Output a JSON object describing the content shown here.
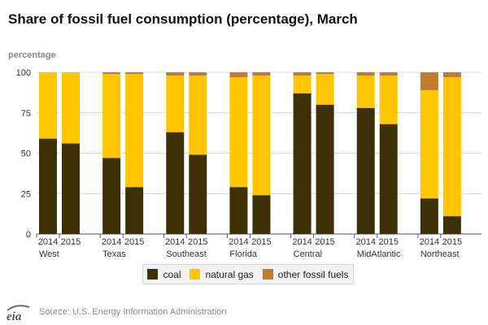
{
  "title": "Share of fossil fuel consumption (percentage), March",
  "logo_text": "eia",
  "source": "Source: U.S. Energy Information Administration",
  "colors": {
    "coal": "#3e3006",
    "natural_gas": "#ffc600",
    "other": "#c07b2e",
    "grid": "#d9d9d9",
    "axis": "#555555"
  },
  "chart_data": {
    "type": "bar",
    "stacked": true,
    "ylabel": "percentage",
    "ylim": [
      0,
      100
    ],
    "yticks": [
      0,
      25,
      50,
      75,
      100
    ],
    "grid": true,
    "legend_position": "bottom",
    "groups": [
      "West",
      "Texas",
      "Southeast",
      "Florida",
      "Central",
      "MidAtlantic",
      "Northeast"
    ],
    "years": [
      "2014",
      "2015"
    ],
    "series": [
      {
        "name": "coal",
        "color": "#3e3006",
        "values": [
          [
            59,
            56
          ],
          [
            47,
            29
          ],
          [
            63,
            49
          ],
          [
            29,
            24
          ],
          [
            87,
            80
          ],
          [
            78,
            68
          ],
          [
            22,
            11
          ]
        ]
      },
      {
        "name": "natural gas",
        "color": "#ffc600",
        "values": [
          [
            41,
            44
          ],
          [
            52,
            70
          ],
          [
            35,
            49
          ],
          [
            68,
            74
          ],
          [
            11,
            19
          ],
          [
            20,
            30
          ],
          [
            67,
            86
          ]
        ]
      },
      {
        "name": "other fossil fuels",
        "color": "#c07b2e",
        "values": [
          [
            0,
            0
          ],
          [
            1,
            1
          ],
          [
            2,
            2
          ],
          [
            3,
            2
          ],
          [
            2,
            1
          ],
          [
            2,
            2
          ],
          [
            11,
            3
          ]
        ]
      }
    ]
  }
}
